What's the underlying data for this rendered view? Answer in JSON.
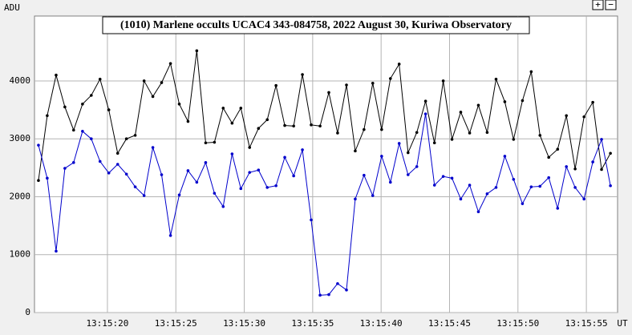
{
  "chart_data": {
    "type": "line",
    "title": "(1010) Marlene occults UCAC4 343-084758, 2022 August 30, Kuriwa Observatory",
    "y_label": "ADU",
    "x_label": "UT",
    "x": [
      14.96,
      15.6,
      16.25,
      16.89,
      17.53,
      18.18,
      18.82,
      19.46,
      20.1,
      20.75,
      21.39,
      22.03,
      22.68,
      23.32,
      23.96,
      24.61,
      25.25,
      25.89,
      26.53,
      27.18,
      27.82,
      28.46,
      29.11,
      29.75,
      30.39,
      31.04,
      31.68,
      32.32,
      32.96,
      33.61,
      34.25,
      34.89,
      35.54,
      36.18,
      36.82,
      37.47,
      38.11,
      38.75,
      39.39,
      40.04,
      40.68,
      41.32,
      41.97,
      42.61,
      43.25,
      43.9,
      44.54,
      45.18,
      45.82,
      46.47,
      47.11,
      47.75,
      48.4,
      49.04,
      49.68,
      50.33,
      50.97,
      51.61,
      52.25,
      52.9,
      53.54,
      54.18,
      54.83,
      55.47,
      56.11,
      56.76
    ],
    "series": [
      {
        "color": "#000000",
        "values": [
          2280,
          3400,
          4100,
          3550,
          3150,
          3600,
          3750,
          4030,
          3500,
          2750,
          3000,
          3060,
          4000,
          3730,
          3970,
          4300,
          3600,
          3300,
          4520,
          2930,
          2940,
          3530,
          3270,
          3530,
          2850,
          3180,
          3330,
          3920,
          3230,
          3220,
          4110,
          3240,
          3220,
          3800,
          3100,
          3930,
          2790,
          3160,
          3960,
          3160,
          4040,
          4290,
          2760,
          3110,
          3650,
          2930,
          4000,
          2990,
          3460,
          3100,
          3580,
          3110,
          4030,
          3640,
          2990,
          3660,
          4160,
          3060,
          2680,
          2820,
          3400,
          2480,
          3380,
          3630,
          2470,
          2750
        ]
      },
      {
        "color": "#0000cc",
        "values": [
          2890,
          2320,
          1060,
          2490,
          2590,
          3130,
          3000,
          2610,
          2410,
          2560,
          2390,
          2170,
          2020,
          2850,
          2380,
          1330,
          2030,
          2450,
          2250,
          2590,
          2060,
          1830,
          2740,
          2140,
          2420,
          2460,
          2160,
          2190,
          2680,
          2360,
          2810,
          1600,
          300,
          310,
          500,
          390,
          1960,
          2370,
          2020,
          2700,
          2250,
          2920,
          2380,
          2520,
          3430,
          2200,
          2350,
          2320,
          1960,
          2200,
          1740,
          2050,
          2160,
          2700,
          2300,
          1880,
          2170,
          2180,
          2330,
          1800,
          2520,
          2160,
          1960,
          2600,
          2990,
          2190
        ]
      }
    ],
    "xlim": [
      14.67,
      57.28
    ],
    "ylim": [
      0,
      5120
    ],
    "xticks": [
      {
        "value": 20,
        "label": "13:15:20"
      },
      {
        "value": 25,
        "label": "13:15:25"
      },
      {
        "value": 30,
        "label": "13:15:30"
      },
      {
        "value": 35,
        "label": "13:15:35"
      },
      {
        "value": 40,
        "label": "13:15:40"
      },
      {
        "value": 45,
        "label": "13:15:45"
      },
      {
        "value": 50,
        "label": "13:15:50"
      },
      {
        "value": 55,
        "label": "13:15:55"
      }
    ],
    "yticks": [
      0,
      1000,
      2000,
      3000,
      4000
    ],
    "grid": true
  },
  "controls": {
    "zoom_in": "+",
    "zoom_out": "−"
  }
}
